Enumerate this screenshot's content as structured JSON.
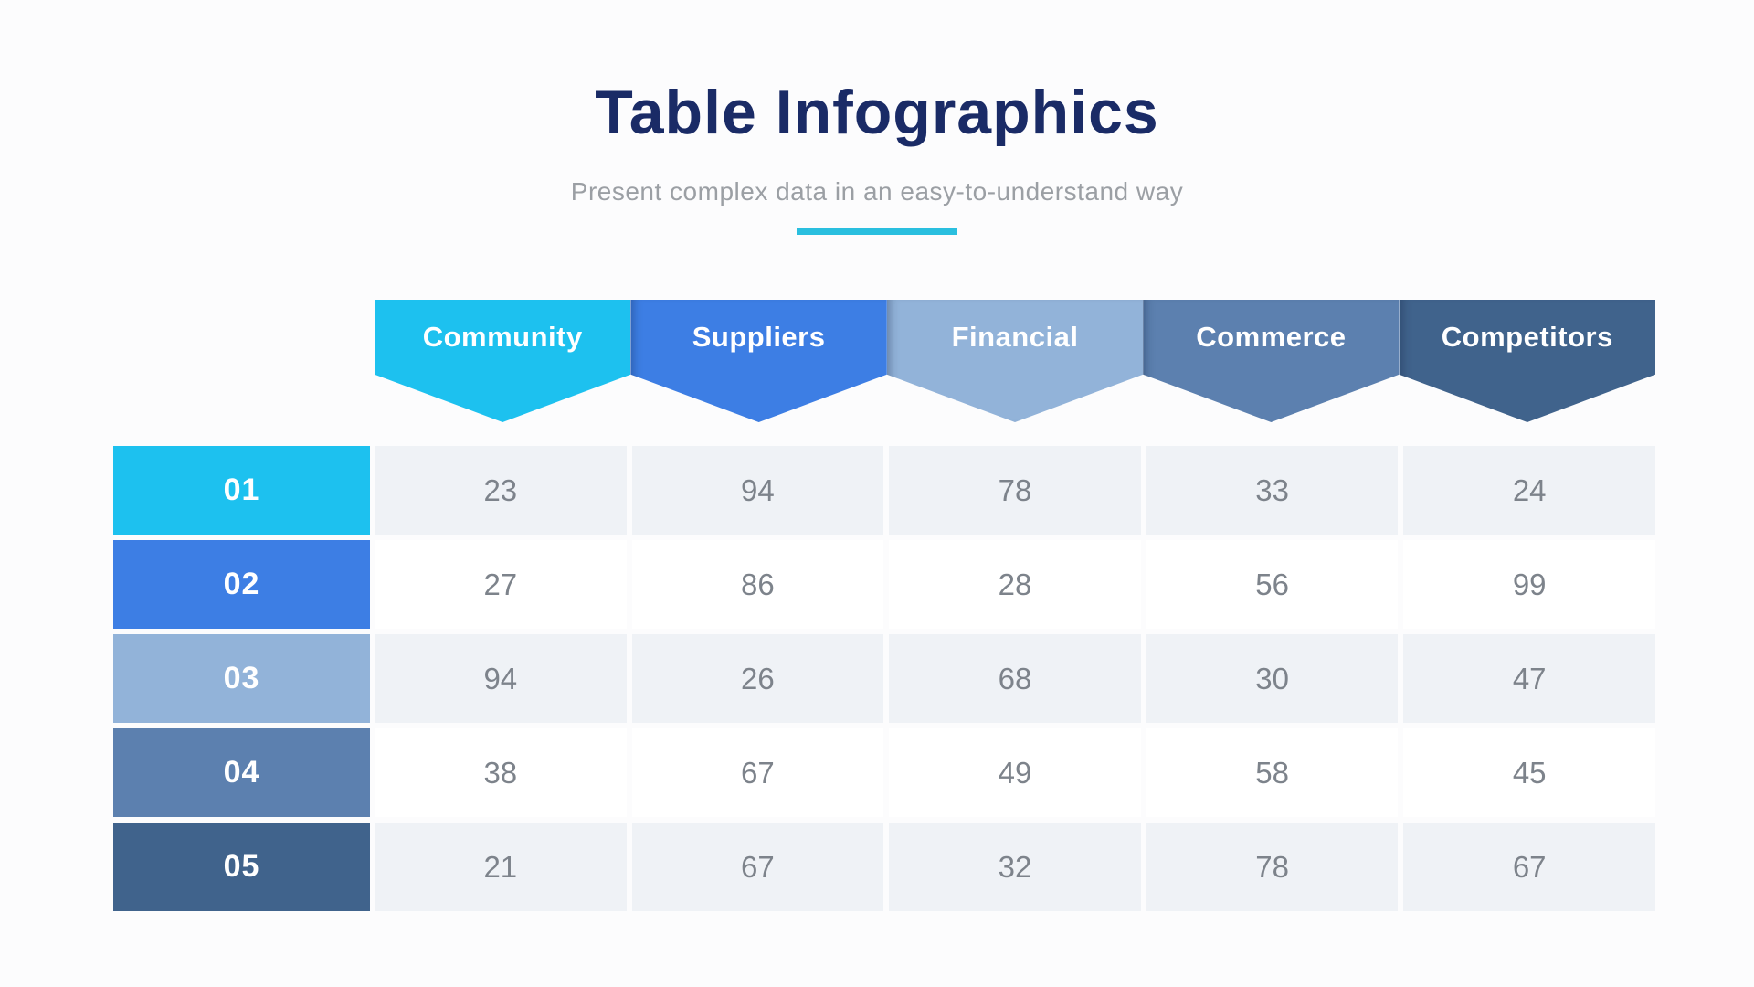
{
  "header": {
    "title": "Table Infographics",
    "subtitle": "Present complex data in an easy-to-understand way"
  },
  "chart_data": {
    "type": "table",
    "columns": [
      {
        "label": "Community",
        "color": "#1dc1ef"
      },
      {
        "label": "Suppliers",
        "color": "#3d7ee4"
      },
      {
        "label": "Financial",
        "color": "#92b3d9"
      },
      {
        "label": "Commerce",
        "color": "#5c80af"
      },
      {
        "label": "Competitors",
        "color": "#40638c"
      }
    ],
    "rows": [
      {
        "label": "01",
        "color": "#1dc1ef",
        "values": [
          23,
          94,
          78,
          33,
          24
        ]
      },
      {
        "label": "02",
        "color": "#3d7ee4",
        "values": [
          27,
          86,
          28,
          56,
          99
        ]
      },
      {
        "label": "03",
        "color": "#92b3d9",
        "values": [
          94,
          26,
          68,
          30,
          47
        ]
      },
      {
        "label": "04",
        "color": "#5c80af",
        "values": [
          38,
          67,
          49,
          58,
          45
        ]
      },
      {
        "label": "05",
        "color": "#40638c",
        "values": [
          21,
          67,
          32,
          78,
          67
        ]
      }
    ],
    "title": "Table Infographics",
    "legend": false,
    "grid": false
  },
  "style": {
    "accent_divider": "#2abfdf",
    "title_color": "#1a2b66",
    "subtitle_color": "#9b9fa4",
    "data_text_color": "#7d838b",
    "row_bg_odd": "#eff2f6",
    "row_bg_even": "#ffffff",
    "canvas_bg": "#fcfcfd"
  }
}
